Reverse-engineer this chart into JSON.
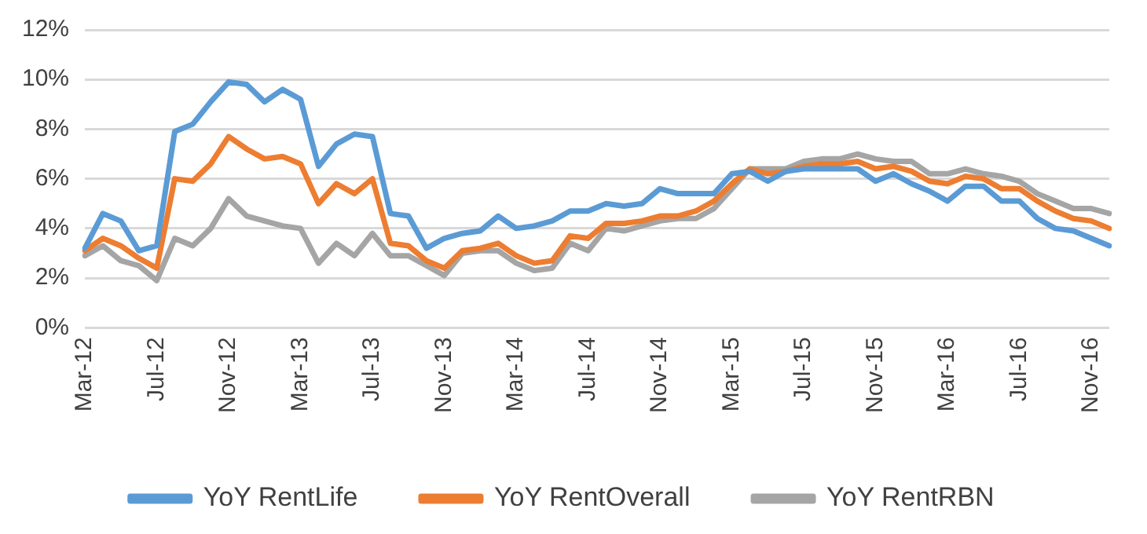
{
  "chart_data": {
    "type": "line",
    "categories": [
      "Mar-12",
      null,
      null,
      null,
      "Jul-12",
      null,
      null,
      null,
      "Nov-12",
      null,
      null,
      null,
      "Mar-13",
      null,
      null,
      null,
      "Jul-13",
      null,
      null,
      null,
      "Nov-13",
      null,
      null,
      null,
      "Mar-14",
      null,
      null,
      null,
      "Jul-14",
      null,
      null,
      null,
      "Nov-14",
      null,
      null,
      null,
      "Mar-15",
      null,
      null,
      null,
      "Jul-15",
      null,
      null,
      null,
      "Nov-15",
      null,
      null,
      null,
      "Mar-16",
      null,
      null,
      null,
      "Jul-16",
      null,
      null,
      null,
      "Nov-16",
      null
    ],
    "series": [
      {
        "name": "YoY RentLife",
        "color": "#5b9bd5",
        "values": [
          3.2,
          4.6,
          4.3,
          3.1,
          3.3,
          7.9,
          8.2,
          9.1,
          9.9,
          9.8,
          9.1,
          9.6,
          9.2,
          6.5,
          7.4,
          7.8,
          7.7,
          4.6,
          4.5,
          3.2,
          3.6,
          3.8,
          3.9,
          4.5,
          4.0,
          4.1,
          4.3,
          4.7,
          4.7,
          5.0,
          4.9,
          5.0,
          5.6,
          5.4,
          5.4,
          5.4,
          6.2,
          6.3,
          5.9,
          6.3,
          6.4,
          6.4,
          6.4,
          6.4,
          5.9,
          6.2,
          5.8,
          5.5,
          5.1,
          5.7,
          5.7,
          5.1,
          5.1,
          4.4,
          4.0,
          3.9,
          3.6,
          3.3
        ]
      },
      {
        "name": "YoY RentOverall",
        "color": "#ed7d31",
        "values": [
          3.1,
          3.6,
          3.3,
          2.8,
          2.4,
          6.0,
          5.9,
          6.6,
          7.7,
          7.2,
          6.8,
          6.9,
          6.6,
          5.0,
          5.8,
          5.4,
          6.0,
          3.4,
          3.3,
          2.7,
          2.4,
          3.1,
          3.2,
          3.4,
          2.9,
          2.6,
          2.7,
          3.7,
          3.6,
          4.2,
          4.2,
          4.3,
          4.5,
          4.5,
          4.7,
          5.1,
          5.8,
          6.4,
          6.2,
          6.3,
          6.5,
          6.6,
          6.6,
          6.7,
          6.4,
          6.5,
          6.3,
          5.9,
          5.8,
          6.1,
          6.0,
          5.6,
          5.6,
          5.1,
          4.7,
          4.4,
          4.3,
          4.0
        ]
      },
      {
        "name": "YoY RentRBN",
        "color": "#a5a5a5",
        "values": [
          2.9,
          3.3,
          2.7,
          2.5,
          1.9,
          3.6,
          3.3,
          4.0,
          5.2,
          4.5,
          4.3,
          4.1,
          4.0,
          2.6,
          3.4,
          2.9,
          3.8,
          2.9,
          2.9,
          2.5,
          2.1,
          3.0,
          3.1,
          3.1,
          2.6,
          2.3,
          2.4,
          3.4,
          3.1,
          4.0,
          3.9,
          4.1,
          4.3,
          4.4,
          4.4,
          4.8,
          5.6,
          6.4,
          6.4,
          6.4,
          6.7,
          6.8,
          6.8,
          7.0,
          6.8,
          6.7,
          6.7,
          6.2,
          6.2,
          6.4,
          6.2,
          6.1,
          5.9,
          5.4,
          5.1,
          4.8,
          4.8,
          4.6
        ]
      }
    ],
    "ylim": [
      0,
      12
    ],
    "yticks": [
      {
        "value": 0,
        "label": "0%"
      },
      {
        "value": 2,
        "label": "2%"
      },
      {
        "value": 4,
        "label": "4%"
      },
      {
        "value": 6,
        "label": "6%"
      },
      {
        "value": 8,
        "label": "8%"
      },
      {
        "value": 10,
        "label": "10%"
      },
      {
        "value": 12,
        "label": "12%"
      }
    ],
    "grid": "y",
    "legend": "bottom",
    "marker": "none",
    "line_style": "solid"
  }
}
